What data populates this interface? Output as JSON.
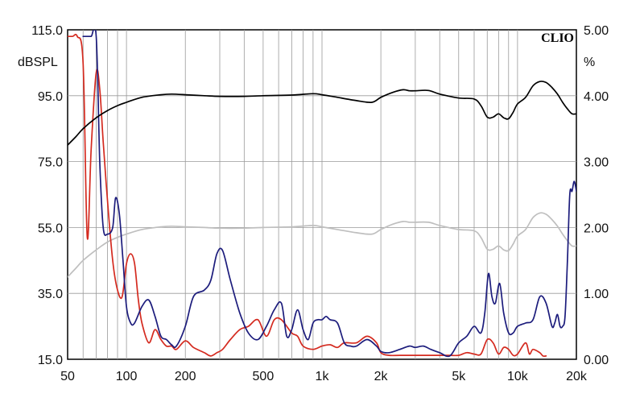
{
  "chart_data": {
    "type": "line",
    "title": "",
    "brand": "CLIO",
    "xlabel": "",
    "ylabel": "dBSPL",
    "y2label": "%",
    "x_scale": "log",
    "xlim": [
      50,
      20000
    ],
    "ylim": [
      15,
      115
    ],
    "y2lim": [
      0,
      5
    ],
    "grid": true,
    "x_ticks": [
      50,
      100,
      200,
      500,
      1000,
      2000,
      5000,
      10000,
      20000
    ],
    "x_tick_labels": [
      "50",
      "100",
      "200",
      "500",
      "1k",
      "2k",
      "5k",
      "10k",
      "20k"
    ],
    "y_ticks": [
      15,
      35,
      55,
      75,
      95,
      115
    ],
    "y_tick_labels": [
      "15.0",
      "35.0",
      "55.0",
      "75.0",
      "95.0",
      "115.0"
    ],
    "y2_ticks": [
      0,
      1,
      2,
      3,
      4,
      5
    ],
    "y2_tick_labels": [
      "0.00",
      "1.00",
      "2.00",
      "3.00",
      "4.00",
      "5.00"
    ],
    "series": [
      {
        "axis": "left",
        "color": "#000000",
        "x": [
          50,
          55,
          60,
          70,
          80,
          90,
          100,
          120,
          150,
          170,
          200,
          250,
          300,
          400,
          500,
          700,
          900,
          1000,
          1200,
          1500,
          1800,
          2000,
          2300,
          2600,
          2800,
          3000,
          3500,
          4000,
          5000,
          6000,
          6500,
          7000,
          7500,
          8000,
          8500,
          9000,
          9500,
          10000,
          11000,
          12000,
          13000,
          14000,
          15000,
          16000,
          17000,
          18000,
          19000,
          20000
        ],
        "y": [
          80,
          82.5,
          85,
          88.3,
          90.5,
          92,
          93,
          94.5,
          95.3,
          95.5,
          95.3,
          95,
          94.8,
          94.8,
          95,
          95.2,
          95.6,
          95.3,
          94.5,
          93.5,
          93,
          94.5,
          96,
          96.8,
          96.5,
          96.5,
          96.6,
          95.5,
          94.3,
          94,
          92,
          88.5,
          88.5,
          89.5,
          88.3,
          88,
          90,
          92.5,
          94.5,
          98,
          99.3,
          99,
          97.5,
          95.5,
          93,
          91,
          89.5,
          89.5
        ]
      },
      {
        "axis": "right",
        "color": "#bfbfbf",
        "x": [
          50,
          55,
          60,
          70,
          80,
          90,
          100,
          120,
          150,
          170,
          200,
          250,
          300,
          400,
          500,
          700,
          900,
          1000,
          1200,
          1500,
          1800,
          2000,
          2300,
          2600,
          2800,
          3000,
          3500,
          4000,
          5000,
          6000,
          6500,
          7000,
          7500,
          8000,
          8500,
          9000,
          9500,
          10000,
          11000,
          12000,
          13000,
          14000,
          15000,
          16000,
          17000,
          18000,
          19000,
          20000
        ],
        "y": [
          1.25,
          1.38,
          1.5,
          1.66,
          1.78,
          1.85,
          1.9,
          1.97,
          2.01,
          2.02,
          2.01,
          2.0,
          1.99,
          1.99,
          2.0,
          2.01,
          2.03,
          2.01,
          1.97,
          1.92,
          1.9,
          1.97,
          2.05,
          2.09,
          2.08,
          2.08,
          2.08,
          2.03,
          1.97,
          1.95,
          1.85,
          1.67,
          1.67,
          1.72,
          1.66,
          1.65,
          1.75,
          1.87,
          1.97,
          2.15,
          2.22,
          2.2,
          2.12,
          2.02,
          1.9,
          1.8,
          1.72,
          1.72
        ]
      },
      {
        "axis": "right",
        "color": "#1c1c7c",
        "x": [
          60,
          63,
          66,
          70,
          73,
          76,
          80,
          85,
          88,
          92,
          96,
          100,
          105,
          110,
          120,
          130,
          140,
          150,
          160,
          170,
          180,
          200,
          220,
          250,
          270,
          290,
          310,
          340,
          380,
          420,
          470,
          520,
          570,
          620,
          660,
          700,
          750,
          800,
          850,
          900,
          950,
          1000,
          1050,
          1100,
          1200,
          1300,
          1400,
          1500,
          1700,
          1900,
          2000,
          2200,
          2500,
          2800,
          3000,
          3300,
          3600,
          4000,
          4500,
          5000,
          5500,
          6000,
          6500,
          6800,
          7100,
          7400,
          7700,
          8100,
          8500,
          9000,
          9500,
          10000,
          11000,
          12000,
          13000,
          14000,
          15000,
          15500,
          16000,
          16500,
          17000,
          17500,
          18000,
          18500,
          19000,
          19500,
          20000
        ],
        "y": [
          4.9,
          4.9,
          4.9,
          4.9,
          3.0,
          2.0,
          1.9,
          2.0,
          2.45,
          2.2,
          1.5,
          0.8,
          0.55,
          0.55,
          0.8,
          0.9,
          0.65,
          0.35,
          0.3,
          0.22,
          0.2,
          0.5,
          0.95,
          1.05,
          1.2,
          1.6,
          1.65,
          1.2,
          0.7,
          0.4,
          0.3,
          0.5,
          0.75,
          0.85,
          0.35,
          0.45,
          0.75,
          0.45,
          0.3,
          0.55,
          0.6,
          0.6,
          0.65,
          0.6,
          0.55,
          0.25,
          0.2,
          0.2,
          0.3,
          0.2,
          0.12,
          0.1,
          0.15,
          0.2,
          0.18,
          0.2,
          0.15,
          0.1,
          0.05,
          0.25,
          0.35,
          0.5,
          0.4,
          0.7,
          1.3,
          0.95,
          0.85,
          1.15,
          0.7,
          0.4,
          0.4,
          0.5,
          0.55,
          0.6,
          0.95,
          0.85,
          0.5,
          0.55,
          0.68,
          0.5,
          0.5,
          0.65,
          1.5,
          2.5,
          2.55,
          2.7,
          2.55
        ]
      },
      {
        "axis": "right",
        "color": "#d42a1f",
        "x": [
          50,
          53,
          56,
          60,
          63,
          66,
          70,
          73,
          76,
          80,
          85,
          90,
          95,
          100,
          105,
          110,
          115,
          120,
          130,
          140,
          150,
          160,
          170,
          180,
          200,
          220,
          250,
          270,
          290,
          310,
          340,
          380,
          420,
          470,
          520,
          570,
          620,
          700,
          750,
          800,
          900,
          1000,
          1100,
          1200,
          1300,
          1500,
          1700,
          1900,
          2000,
          2200,
          2500,
          3000,
          3500,
          4000,
          4500,
          5000,
          5500,
          6000,
          6500,
          7000,
          7500,
          8000,
          8500,
          9000,
          9500,
          10000,
          11000,
          11500,
          12000,
          13000,
          13500,
          14000
        ],
        "y": [
          4.9,
          4.9,
          4.9,
          4.5,
          1.85,
          3.2,
          4.35,
          4.1,
          3.3,
          2.4,
          1.5,
          1.05,
          0.95,
          1.45,
          1.6,
          1.45,
          0.9,
          0.55,
          0.25,
          0.45,
          0.3,
          0.2,
          0.2,
          0.15,
          0.28,
          0.18,
          0.1,
          0.05,
          0.1,
          0.15,
          0.3,
          0.45,
          0.5,
          0.6,
          0.35,
          0.6,
          0.6,
          0.4,
          0.35,
          0.2,
          0.15,
          0.2,
          0.22,
          0.18,
          0.25,
          0.25,
          0.35,
          0.25,
          0.1,
          0.06,
          0.06,
          0.06,
          0.06,
          0.06,
          0.06,
          0.06,
          0.1,
          0.08,
          0.08,
          0.3,
          0.25,
          0.08,
          0.18,
          0.15,
          0.06,
          0.08,
          0.25,
          0.08,
          0.15,
          0.1,
          0.05,
          0.05
        ]
      }
    ]
  }
}
